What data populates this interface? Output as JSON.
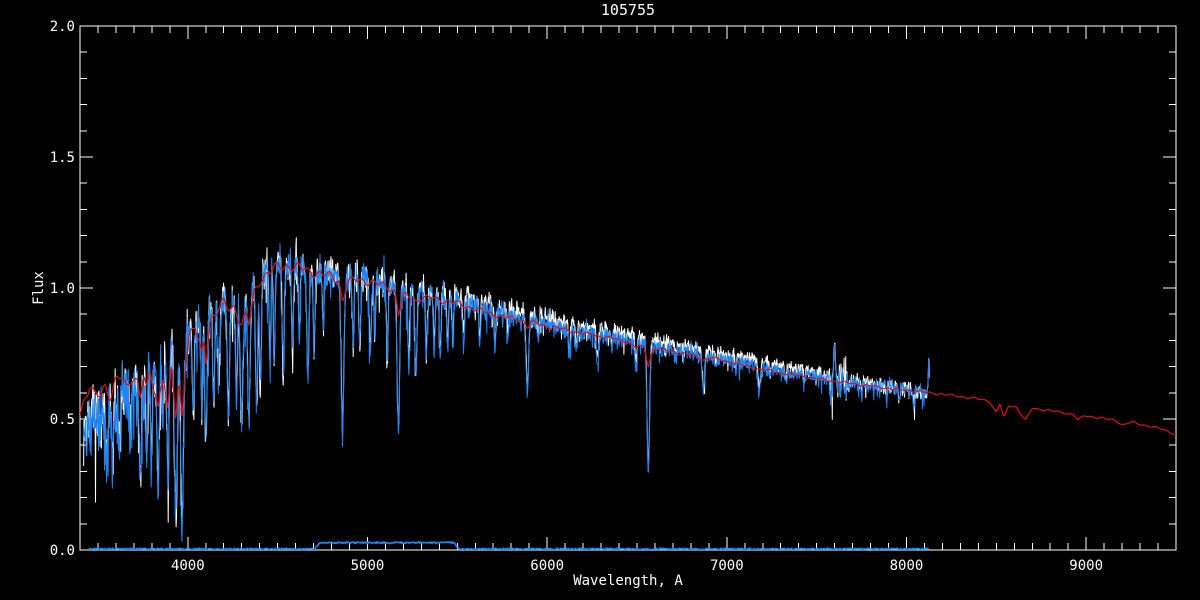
{
  "header": {
    "title": "105755"
  },
  "colors": {
    "background": "#000000",
    "axis": "#ffffff",
    "observed_blue": "#1e86f7",
    "overlay_white": "#ffffff",
    "template_red": "#e01010",
    "mask_blue": "#1e86f7"
  },
  "axes": {
    "x_tick_labels": [
      "4000",
      "5000",
      "6000",
      "7000",
      "8000",
      "9000"
    ],
    "x_tick_values": [
      4000,
      5000,
      6000,
      7000,
      8000,
      9000
    ],
    "y_tick_labels": [
      "0.0",
      "0.5",
      "1.0",
      "1.5",
      "2.0"
    ],
    "y_tick_values": [
      0,
      0.5,
      1.0,
      1.5,
      2.0
    ],
    "x_minor_step": 100,
    "y_minor_step": 0.1
  },
  "chart_data": {
    "type": "line",
    "title": "105755",
    "xlabel": "Wavelength, A",
    "ylabel": "Flux",
    "xlim": [
      3400,
      9500
    ],
    "ylim": [
      0,
      2
    ],
    "grid": false,
    "legend": null,
    "series_names": [
      "observed-spectrum-white",
      "observed-spectrum-blue",
      "template-fit-red",
      "mask-weight-line"
    ],
    "observed_range": [
      3420,
      8130
    ],
    "continuum": [
      [
        3420,
        0.46
      ],
      [
        3460,
        0.49
      ],
      [
        3500,
        0.5
      ],
      [
        3550,
        0.54
      ],
      [
        3600,
        0.57
      ],
      [
        3650,
        0.6
      ],
      [
        3700,
        0.63
      ],
      [
        3750,
        0.63
      ],
      [
        3800,
        0.67
      ],
      [
        3850,
        0.7
      ],
      [
        3900,
        0.76
      ],
      [
        3950,
        0.79
      ],
      [
        4000,
        0.83
      ],
      [
        4050,
        0.87
      ],
      [
        4100,
        0.87
      ],
      [
        4150,
        0.91
      ],
      [
        4200,
        0.94
      ],
      [
        4250,
        0.94
      ],
      [
        4300,
        0.96
      ],
      [
        4350,
        1.0
      ],
      [
        4400,
        1.05
      ],
      [
        4450,
        1.08
      ],
      [
        4500,
        1.1
      ],
      [
        4600,
        1.09
      ],
      [
        4700,
        1.07
      ],
      [
        4800,
        1.05
      ],
      [
        4850,
        1.03
      ],
      [
        4950,
        1.04
      ],
      [
        5050,
        1.03
      ],
      [
        5150,
        1.0
      ],
      [
        5250,
        0.99
      ],
      [
        5350,
        0.975
      ],
      [
        5450,
        0.96
      ],
      [
        5550,
        0.945
      ],
      [
        5650,
        0.925
      ],
      [
        5750,
        0.905
      ],
      [
        5850,
        0.885
      ],
      [
        5950,
        0.87
      ],
      [
        6050,
        0.855
      ],
      [
        6150,
        0.84
      ],
      [
        6250,
        0.825
      ],
      [
        6350,
        0.815
      ],
      [
        6450,
        0.8
      ],
      [
        6550,
        0.785
      ],
      [
        6650,
        0.77
      ],
      [
        6750,
        0.76
      ],
      [
        6850,
        0.745
      ],
      [
        6950,
        0.73
      ],
      [
        7050,
        0.72
      ],
      [
        7150,
        0.705
      ],
      [
        7250,
        0.69
      ],
      [
        7350,
        0.68
      ],
      [
        7450,
        0.67
      ],
      [
        7550,
        0.655
      ],
      [
        7650,
        0.645
      ],
      [
        7750,
        0.635
      ],
      [
        7850,
        0.625
      ],
      [
        7950,
        0.618
      ],
      [
        8050,
        0.61
      ],
      [
        8130,
        0.6
      ]
    ],
    "noise_amp": [
      [
        3420,
        0.1
      ],
      [
        3600,
        0.095
      ],
      [
        3800,
        0.09
      ],
      [
        4000,
        0.075
      ],
      [
        4200,
        0.065
      ],
      [
        4400,
        0.06
      ],
      [
        4700,
        0.05
      ],
      [
        5000,
        0.045
      ],
      [
        5300,
        0.04
      ],
      [
        5600,
        0.035
      ],
      [
        6000,
        0.03
      ],
      [
        6500,
        0.025
      ],
      [
        7000,
        0.022
      ],
      [
        7500,
        0.02
      ],
      [
        8000,
        0.022
      ],
      [
        8130,
        0.028
      ]
    ],
    "noise_boost": {
      "from": 7570,
      "to": 7665,
      "factor": 3.2
    },
    "white_offset": [
      [
        3420,
        0.0
      ],
      [
        5000,
        0.01
      ],
      [
        5600,
        0.025
      ],
      [
        6500,
        0.025
      ],
      [
        7500,
        0.018
      ],
      [
        8000,
        0.0
      ],
      [
        8130,
        -0.01
      ]
    ],
    "absorption_lines": [
      [
        3550,
        0.3,
        6
      ],
      [
        3581,
        0.33,
        5
      ],
      [
        3620,
        0.4,
        5
      ],
      [
        3680,
        0.42,
        5
      ],
      [
        3735,
        0.26,
        6
      ],
      [
        3770,
        0.36,
        5
      ],
      [
        3798,
        0.33,
        5
      ],
      [
        3835,
        0.26,
        6
      ],
      [
        3860,
        0.44,
        5
      ],
      [
        3889,
        0.29,
        6
      ],
      [
        3933,
        0.13,
        8
      ],
      [
        3968,
        0.1,
        8
      ],
      [
        4030,
        0.52,
        6
      ],
      [
        4077,
        0.55,
        5
      ],
      [
        4101,
        0.43,
        7
      ],
      [
        4144,
        0.58,
        5
      ],
      [
        4172,
        0.62,
        5
      ],
      [
        4226,
        0.52,
        6
      ],
      [
        4271,
        0.6,
        5
      ],
      [
        4300,
        0.5,
        8
      ],
      [
        4340,
        0.52,
        7
      ],
      [
        4383,
        0.54,
        6
      ],
      [
        4404,
        0.6,
        5
      ],
      [
        4457,
        0.72,
        5
      ],
      [
        4481,
        0.74,
        5
      ],
      [
        4531,
        0.7,
        6
      ],
      [
        4583,
        0.78,
        5
      ],
      [
        4620,
        0.8,
        4
      ],
      [
        4668,
        0.68,
        6
      ],
      [
        4703,
        0.76,
        5
      ],
      [
        4754,
        0.82,
        4
      ],
      [
        4861,
        0.43,
        7
      ],
      [
        4920,
        0.78,
        5
      ],
      [
        4957,
        0.8,
        5
      ],
      [
        5015,
        0.76,
        5
      ],
      [
        5041,
        0.79,
        4
      ],
      [
        5110,
        0.74,
        5
      ],
      [
        5172,
        0.46,
        7
      ],
      [
        5230,
        0.7,
        5
      ],
      [
        5270,
        0.66,
        6
      ],
      [
        5328,
        0.73,
        5
      ],
      [
        5371,
        0.76,
        5
      ],
      [
        5405,
        0.74,
        5
      ],
      [
        5446,
        0.77,
        5
      ],
      [
        5476,
        0.8,
        4
      ],
      [
        5535,
        0.78,
        5
      ],
      [
        5625,
        0.8,
        5
      ],
      [
        5710,
        0.77,
        5
      ],
      [
        5782,
        0.79,
        4
      ],
      [
        5890,
        0.6,
        7
      ],
      [
        5950,
        0.8,
        4
      ],
      [
        6122,
        0.74,
        5
      ],
      [
        6162,
        0.75,
        5
      ],
      [
        6280,
        0.71,
        6
      ],
      [
        6360,
        0.76,
        4
      ],
      [
        6495,
        0.69,
        5
      ],
      [
        6563,
        0.29,
        7
      ],
      [
        6717,
        0.72,
        4
      ],
      [
        6870,
        0.6,
        7
      ],
      [
        6940,
        0.7,
        4
      ],
      [
        7050,
        0.68,
        4
      ],
      [
        7180,
        0.6,
        6
      ],
      [
        7240,
        0.66,
        4
      ],
      [
        7330,
        0.64,
        5
      ],
      [
        7430,
        0.63,
        4
      ],
      [
        7594,
        0.49,
        8
      ],
      [
        7680,
        0.6,
        4
      ],
      [
        7750,
        0.6,
        4
      ],
      [
        7890,
        0.58,
        4
      ],
      [
        7960,
        0.57,
        4
      ],
      [
        8040,
        0.56,
        4
      ]
    ],
    "emission_spikes": [
      [
        7600,
        0.82,
        4
      ],
      [
        8124,
        0.76,
        3
      ]
    ],
    "template": [
      [
        3400,
        0.53
      ],
      [
        3430,
        0.58
      ],
      [
        3455,
        0.62
      ],
      [
        3480,
        0.58
      ],
      [
        3510,
        0.6
      ],
      [
        3540,
        0.63
      ],
      [
        3570,
        0.59
      ],
      [
        3600,
        0.64
      ],
      [
        3630,
        0.66
      ],
      [
        3660,
        0.62
      ],
      [
        3690,
        0.67
      ],
      [
        3720,
        0.64
      ],
      [
        3735,
        0.58
      ],
      [
        3755,
        0.66
      ],
      [
        3770,
        0.6
      ],
      [
        3790,
        0.68
      ],
      [
        3820,
        0.6
      ],
      [
        3835,
        0.54
      ],
      [
        3850,
        0.63
      ],
      [
        3865,
        0.67
      ],
      [
        3889,
        0.52
      ],
      [
        3910,
        0.7
      ],
      [
        3933,
        0.5
      ],
      [
        3950,
        0.63
      ],
      [
        3968,
        0.52
      ],
      [
        3990,
        0.74
      ],
      [
        4010,
        0.82
      ],
      [
        4040,
        0.85
      ],
      [
        4077,
        0.74
      ],
      [
        4090,
        0.8
      ],
      [
        4101,
        0.72
      ],
      [
        4125,
        0.88
      ],
      [
        4160,
        0.91
      ],
      [
        4200,
        0.94
      ],
      [
        4230,
        0.92
      ],
      [
        4260,
        0.93
      ],
      [
        4300,
        0.86
      ],
      [
        4325,
        0.9
      ],
      [
        4340,
        0.86
      ],
      [
        4370,
        0.98
      ],
      [
        4400,
        1.03
      ],
      [
        4450,
        1.06
      ],
      [
        4500,
        1.08
      ],
      [
        4550,
        1.085
      ],
      [
        4600,
        1.08
      ],
      [
        4650,
        1.07
      ],
      [
        4700,
        1.06
      ],
      [
        4760,
        1.05
      ],
      [
        4810,
        1.04
      ],
      [
        4840,
        1.03
      ],
      [
        4861,
        0.95
      ],
      [
        4885,
        1.02
      ],
      [
        4930,
        1.03
      ],
      [
        4980,
        1.03
      ],
      [
        5030,
        1.02
      ],
      [
        5080,
        1.01
      ],
      [
        5130,
        1.0
      ],
      [
        5155,
        0.985
      ],
      [
        5172,
        0.9
      ],
      [
        5200,
        0.97
      ],
      [
        5240,
        0.965
      ],
      [
        5270,
        0.95
      ],
      [
        5300,
        0.965
      ],
      [
        5350,
        0.96
      ],
      [
        5400,
        0.955
      ],
      [
        5450,
        0.95
      ],
      [
        5500,
        0.94
      ],
      [
        5600,
        0.92
      ],
      [
        5700,
        0.9
      ],
      [
        5800,
        0.885
      ],
      [
        5870,
        0.875
      ],
      [
        5890,
        0.85
      ],
      [
        5915,
        0.87
      ],
      [
        5990,
        0.855
      ],
      [
        6080,
        0.845
      ],
      [
        6170,
        0.83
      ],
      [
        6260,
        0.82
      ],
      [
        6350,
        0.81
      ],
      [
        6440,
        0.795
      ],
      [
        6495,
        0.775
      ],
      [
        6540,
        0.775
      ],
      [
        6563,
        0.7
      ],
      [
        6590,
        0.77
      ],
      [
        6650,
        0.765
      ],
      [
        6740,
        0.75
      ],
      [
        6810,
        0.745
      ],
      [
        6870,
        0.725
      ],
      [
        6910,
        0.735
      ],
      [
        7000,
        0.72
      ],
      [
        7090,
        0.705
      ],
      [
        7180,
        0.69
      ],
      [
        7270,
        0.68
      ],
      [
        7360,
        0.67
      ],
      [
        7450,
        0.66
      ],
      [
        7540,
        0.65
      ],
      [
        7630,
        0.642
      ],
      [
        7720,
        0.633
      ],
      [
        7810,
        0.625
      ],
      [
        7900,
        0.617
      ],
      [
        8000,
        0.61
      ],
      [
        8130,
        0.6
      ],
      [
        8220,
        0.593
      ],
      [
        8310,
        0.585
      ],
      [
        8400,
        0.576
      ],
      [
        8460,
        0.57
      ],
      [
        8498,
        0.525
      ],
      [
        8520,
        0.558
      ],
      [
        8542,
        0.505
      ],
      [
        8570,
        0.552
      ],
      [
        8610,
        0.547
      ],
      [
        8662,
        0.495
      ],
      [
        8700,
        0.541
      ],
      [
        8760,
        0.536
      ],
      [
        8820,
        0.53
      ],
      [
        8880,
        0.523
      ],
      [
        8930,
        0.517
      ],
      [
        8955,
        0.495
      ],
      [
        8990,
        0.513
      ],
      [
        9050,
        0.507
      ],
      [
        9110,
        0.5
      ],
      [
        9160,
        0.496
      ],
      [
        9205,
        0.477
      ],
      [
        9250,
        0.488
      ],
      [
        9300,
        0.48
      ],
      [
        9360,
        0.471
      ],
      [
        9420,
        0.462
      ],
      [
        9465,
        0.451
      ],
      [
        9500,
        0.44
      ]
    ],
    "template_wiggle_amp": [
      [
        3400,
        0.028
      ],
      [
        4600,
        0.022
      ],
      [
        5200,
        0.015
      ],
      [
        5800,
        0.009
      ],
      [
        6400,
        0.006
      ],
      [
        9500,
        0.004
      ]
    ],
    "mask": {
      "start": 3450,
      "end": 8124,
      "base": 0.004,
      "plateau_from": 4735,
      "plateau_to": 5480,
      "plateau_level": 0.028,
      "ramp": 30
    }
  }
}
